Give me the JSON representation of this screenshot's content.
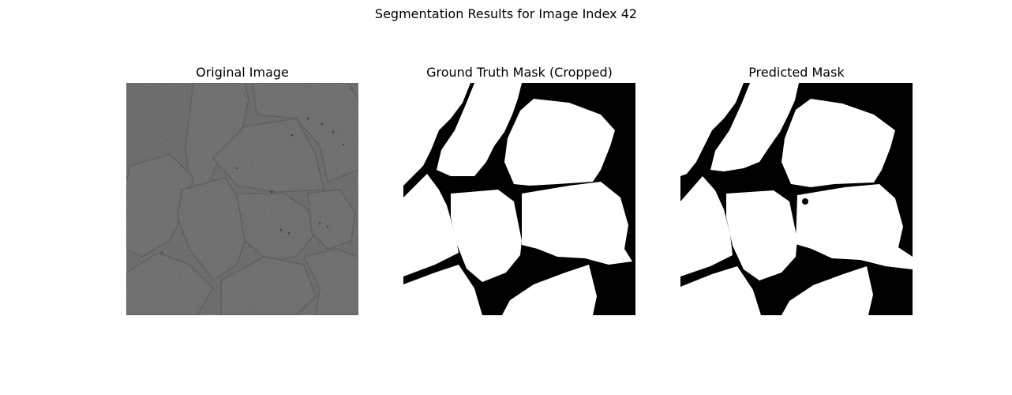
{
  "figure": {
    "title": "Segmentation Results for Image Index 42"
  },
  "panels": [
    {
      "title": "Original Image"
    },
    {
      "title": "Ground Truth Mask (Cropped)"
    },
    {
      "title": "Predicted Mask"
    }
  ]
}
